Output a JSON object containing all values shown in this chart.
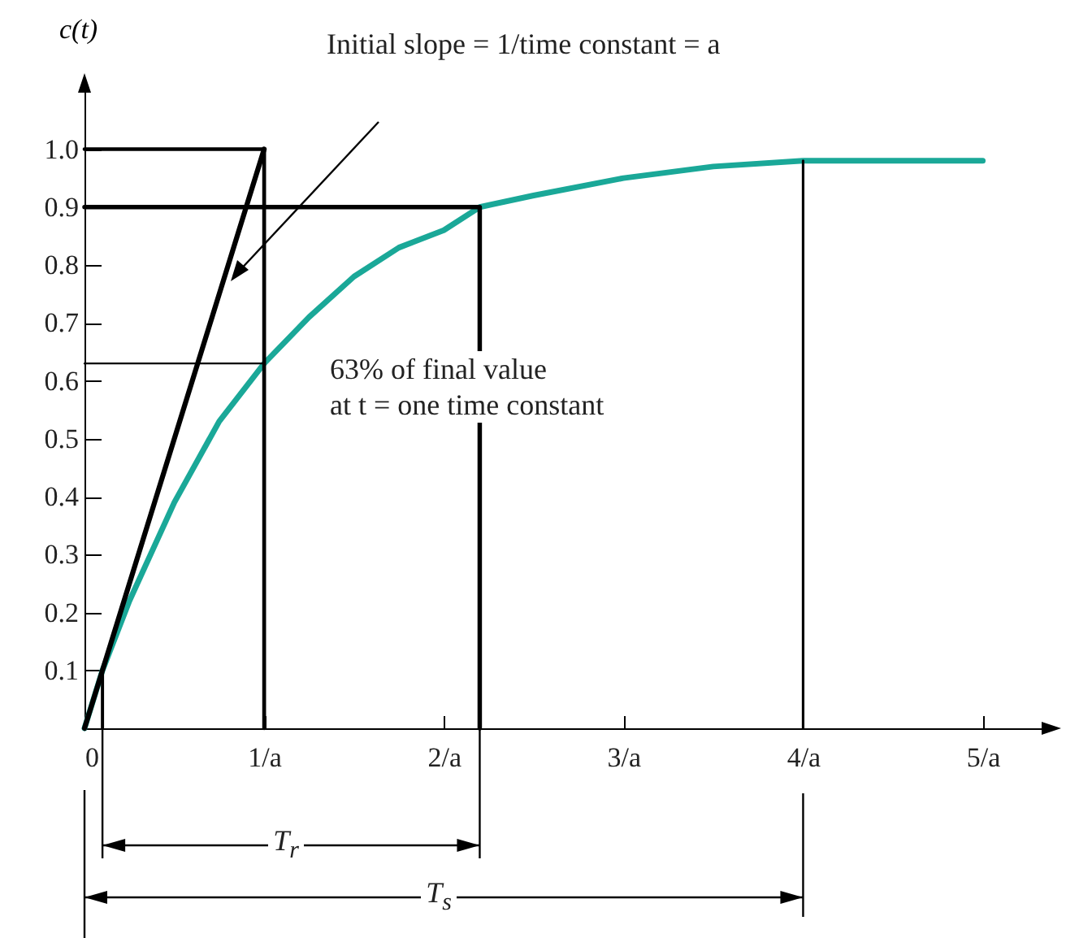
{
  "chart_data": {
    "type": "line",
    "ylabel": "c(t)",
    "xlim": [
      0,
      5.4
    ],
    "ylim": [
      0,
      1.12
    ],
    "xticks": [
      {
        "value": 0,
        "label": "0"
      },
      {
        "value": 1,
        "label": "1/a"
      },
      {
        "value": 2,
        "label": "2/a"
      },
      {
        "value": 3,
        "label": "3/a"
      },
      {
        "value": 4,
        "label": "4/a"
      },
      {
        "value": 5,
        "label": "5/a"
      }
    ],
    "yticks": [
      0.1,
      0.2,
      0.3,
      0.4,
      0.5,
      0.6,
      0.7,
      0.8,
      0.9,
      {
        "value": 1,
        "label": "1.0"
      }
    ],
    "grid": false,
    "series": [
      {
        "color": "#1aa898",
        "x": [
          0,
          0.1,
          0.25,
          0.5,
          0.75,
          1,
          1.25,
          1.5,
          1.75,
          2,
          2.2,
          2.5,
          3,
          3.5,
          4,
          5
        ],
        "values": [
          0,
          0.1,
          0.22,
          0.39,
          0.53,
          0.63,
          0.71,
          0.78,
          0.83,
          0.86,
          0.9,
          0.92,
          0.95,
          0.97,
          0.98,
          0.98
        ]
      },
      {
        "color": "#000000",
        "x": [
          0,
          1
        ],
        "values": [
          0,
          1
        ]
      },
      {
        "color": "#000000",
        "x": [
          0,
          2.2,
          2.2
        ],
        "values": [
          0.9,
          0.9,
          0
        ]
      },
      {
        "color": "#000000",
        "x": [
          0,
          1,
          1
        ],
        "values": [
          1,
          1,
          0
        ]
      },
      {
        "color": "#000000",
        "x": [
          0.1,
          0.1
        ],
        "values": [
          0.1,
          0
        ]
      },
      {
        "color": "#000000",
        "x": [
          4,
          4
        ],
        "values": [
          0.98,
          0
        ]
      },
      {
        "color": "#000000",
        "x": [
          0,
          1
        ],
        "values": [
          0.63,
          0.63
        ]
      }
    ],
    "annotations": [
      "Initial slope = 1/time constant = a",
      "63% of final value\nat t = one time constant",
      "T$_{r}$",
      "T$_{s}$"
    ]
  }
}
